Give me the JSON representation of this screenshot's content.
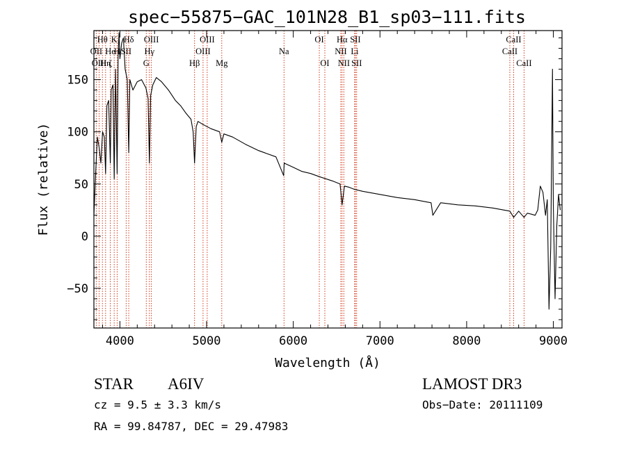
{
  "chart_data": {
    "type": "line",
    "title": "spec−55875−GAC_101N28_B1_sp03−111.fits",
    "xlabel": "Wavelength (Å)",
    "ylabel": "Flux (relative)",
    "xlim": [
      3700,
      9100
    ],
    "ylim": [
      -88,
      197
    ],
    "xticks": [
      4000,
      5000,
      6000,
      7000,
      8000,
      9000
    ],
    "yticks": [
      -50,
      0,
      50,
      100,
      150
    ],
    "grid": false,
    "colors": {
      "line": "#000000",
      "markers": "#cc2200",
      "axes": "#000000",
      "background": "#ffffff"
    },
    "series": [
      {
        "name": "flux",
        "x": [
          3700,
          3720,
          3740,
          3760,
          3780,
          3800,
          3820,
          3835,
          3850,
          3870,
          3889,
          3900,
          3920,
          3934,
          3950,
          3968,
          3980,
          3990,
          4000,
          4020,
          4040,
          4060,
          4085,
          4102,
          4115,
          4150,
          4200,
          4250,
          4300,
          4325,
          4340,
          4355,
          4380,
          4420,
          4480,
          4560,
          4640,
          4700,
          4760,
          4820,
          4845,
          4861,
          4880,
          4900,
          4960,
          5050,
          5150,
          5175,
          5200,
          5300,
          5450,
          5600,
          5800,
          5889,
          5895,
          6000,
          6100,
          6200,
          6300,
          6450,
          6540,
          6563,
          6590,
          6640,
          6700,
          6800,
          7000,
          7200,
          7400,
          7590,
          7610,
          7700,
          7900,
          8100,
          8300,
          8498,
          8542,
          8600,
          8662,
          8700,
          8750,
          8790,
          8820,
          8850,
          8880,
          8910,
          8930,
          8950,
          8970,
          8990,
          9000,
          9020,
          9040,
          9060,
          9080
        ],
        "y": [
          20,
          60,
          95,
          85,
          70,
          100,
          95,
          60,
          125,
          130,
          70,
          140,
          145,
          55,
          160,
          60,
          175,
          195,
          170,
          185,
          190,
          160,
          150,
          80,
          150,
          140,
          148,
          150,
          142,
          132,
          70,
          135,
          145,
          152,
          148,
          140,
          130,
          125,
          118,
          112,
          100,
          70,
          105,
          110,
          107,
          103,
          100,
          90,
          98,
          95,
          88,
          82,
          76,
          58,
          70,
          66,
          62,
          60,
          57,
          53,
          50,
          30,
          48,
          47,
          45,
          43,
          40,
          37,
          35,
          32,
          20,
          32,
          30,
          29,
          27,
          24,
          18,
          24,
          18,
          22,
          21,
          20,
          25,
          48,
          42,
          20,
          35,
          -70,
          -10,
          160,
          30,
          -60,
          10,
          40,
          25
        ]
      }
    ],
    "line_markers": [
      {
        "label": "Hθ",
        "x": 3798,
        "row": 1
      },
      {
        "label": "OII",
        "x": 3727,
        "row": 2
      },
      {
        "label": "OIII",
        "x": 3760,
        "row": 3
      },
      {
        "label": "Hη",
        "x": 3835,
        "row": 3
      },
      {
        "label": "He",
        "x": 3889,
        "row": 2
      },
      {
        "label": "K",
        "x": 3934,
        "row": 1
      },
      {
        "label": "H",
        "x": 3968,
        "row": 2
      },
      {
        "label": "ζ",
        "x": 3889,
        "row": 3
      },
      {
        "label": "Hδ",
        "x": 4102,
        "row": 1
      },
      {
        "label": "SII",
        "x": 4072,
        "row": 2
      },
      {
        "label": "OIII",
        "x": 4363,
        "row": 1
      },
      {
        "label": "Hγ",
        "x": 4340,
        "row": 2
      },
      {
        "label": "G",
        "x": 4304,
        "row": 3
      },
      {
        "label": "Hβ",
        "x": 4861,
        "row": 3
      },
      {
        "label": "OIII",
        "x": 5007,
        "row": 1
      },
      {
        "label": "OIII",
        "x": 4959,
        "row": 2
      },
      {
        "label": "Mg",
        "x": 5175,
        "row": 3
      },
      {
        "label": "Na",
        "x": 5893,
        "row": 2
      },
      {
        "label": "OI",
        "x": 6300,
        "row": 1
      },
      {
        "label": "OI",
        "x": 6364,
        "row": 3
      },
      {
        "label": "Hα",
        "x": 6563,
        "row": 1
      },
      {
        "label": "NII",
        "x": 6548,
        "row": 2
      },
      {
        "label": "NII",
        "x": 6583,
        "row": 3
      },
      {
        "label": "SII",
        "x": 6716,
        "row": 1
      },
      {
        "label": "Li",
        "x": 6708,
        "row": 2
      },
      {
        "label": "SII",
        "x": 6731,
        "row": 3
      },
      {
        "label": "CaII",
        "x": 8542,
        "row": 1
      },
      {
        "label": "CaII",
        "x": 8498,
        "row": 2
      },
      {
        "label": "CaII",
        "x": 8662,
        "row": 3
      }
    ]
  },
  "footer": {
    "object_type": "STAR",
    "subclass": "A6IV",
    "survey": "LAMOST DR3",
    "redshift": "cz = 9.5 ± 3.3 km/s",
    "obs_date": "Obs−Date: 20111109",
    "coords": "RA =  99.84787, DEC =  29.47983"
  }
}
